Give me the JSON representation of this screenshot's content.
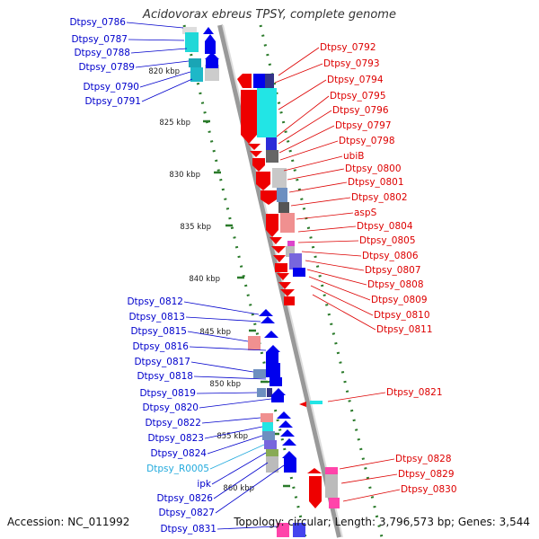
{
  "title": "Acidovorax ebreus TPSY, complete genome",
  "accession": "Accession: NC_011992",
  "topology": "Topology: circular; Length: 3,796,573 bp; Genes: 3,544",
  "colors": {
    "forward_cds": "#0000ee",
    "reverse_cds": "#ee0000",
    "rna": "#22aadd",
    "kbp_tick": "#2a7a2a"
  },
  "kbp_marks": [
    "820 kbp",
    "825 kbp",
    "830 kbp",
    "835 kbp",
    "840 kbp",
    "845 kbp",
    "850 kbp",
    "855 kbp",
    "860 kbp"
  ],
  "left_genes": [
    "Dtpsy_0786",
    "Dtpsy_0787",
    "Dtpsy_0788",
    "Dtpsy_0789",
    "Dtpsy_0790",
    "Dtpsy_0791",
    "Dtpsy_0812",
    "Dtpsy_0813",
    "Dtpsy_0815",
    "Dtpsy_0816",
    "Dtpsy_0817",
    "Dtpsy_0818",
    "Dtpsy_0819",
    "Dtpsy_0820",
    "Dtpsy_0822",
    "Dtpsy_0823",
    "Dtpsy_0824",
    "Dtpsy_R0005",
    "ipk",
    "Dtpsy_0826",
    "Dtpsy_0827",
    "Dtpsy_0831"
  ],
  "right_genes": [
    "Dtpsy_0792",
    "Dtpsy_0793",
    "Dtpsy_0794",
    "Dtpsy_0795",
    "Dtpsy_0796",
    "Dtpsy_0797",
    "Dtpsy_0798",
    "ubiB",
    "Dtpsy_0800",
    "Dtpsy_0801",
    "Dtpsy_0802",
    "aspS",
    "Dtpsy_0804",
    "Dtpsy_0805",
    "Dtpsy_0806",
    "Dtpsy_0807",
    "Dtpsy_0808",
    "Dtpsy_0809",
    "Dtpsy_0810",
    "Dtpsy_0811",
    "Dtpsy_0821",
    "Dtpsy_0828",
    "Dtpsy_0829",
    "Dtpsy_0830"
  ]
}
